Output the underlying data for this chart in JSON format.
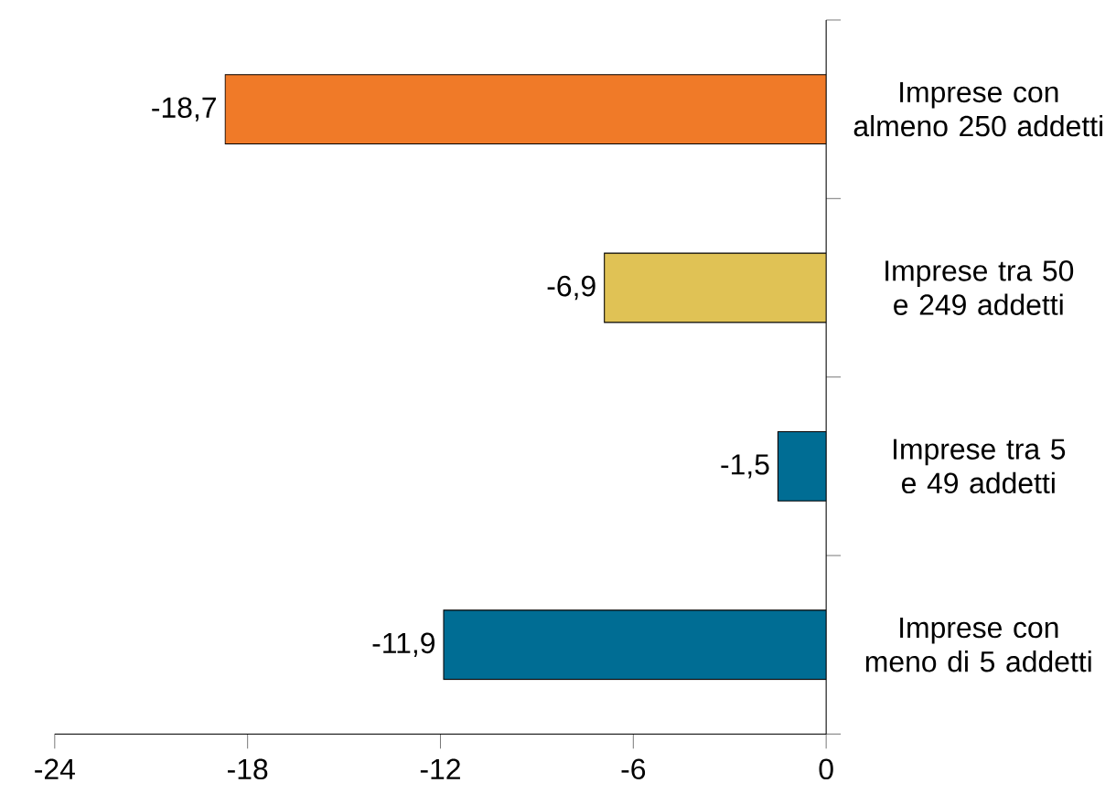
{
  "chart_data": {
    "type": "bar",
    "orientation": "horizontal",
    "categories": [
      "Imprese con almeno 250 addetti",
      "Imprese tra 50 e 249 addetti",
      "Imprese tra 5 e 49 addetti",
      "Imprese con meno di 5 addetti"
    ],
    "values": [
      -18.7,
      -6.9,
      -1.5,
      -11.9
    ],
    "colors": [
      "#f07a28",
      "#e0c255",
      "#006d94",
      "#006d94"
    ],
    "value_labels": [
      "-18,7",
      "-6,9",
      "-1,5",
      "-11,9"
    ],
    "xlim": [
      -24,
      0
    ],
    "xticks": [
      -24,
      -18,
      -12,
      -6,
      0
    ]
  }
}
